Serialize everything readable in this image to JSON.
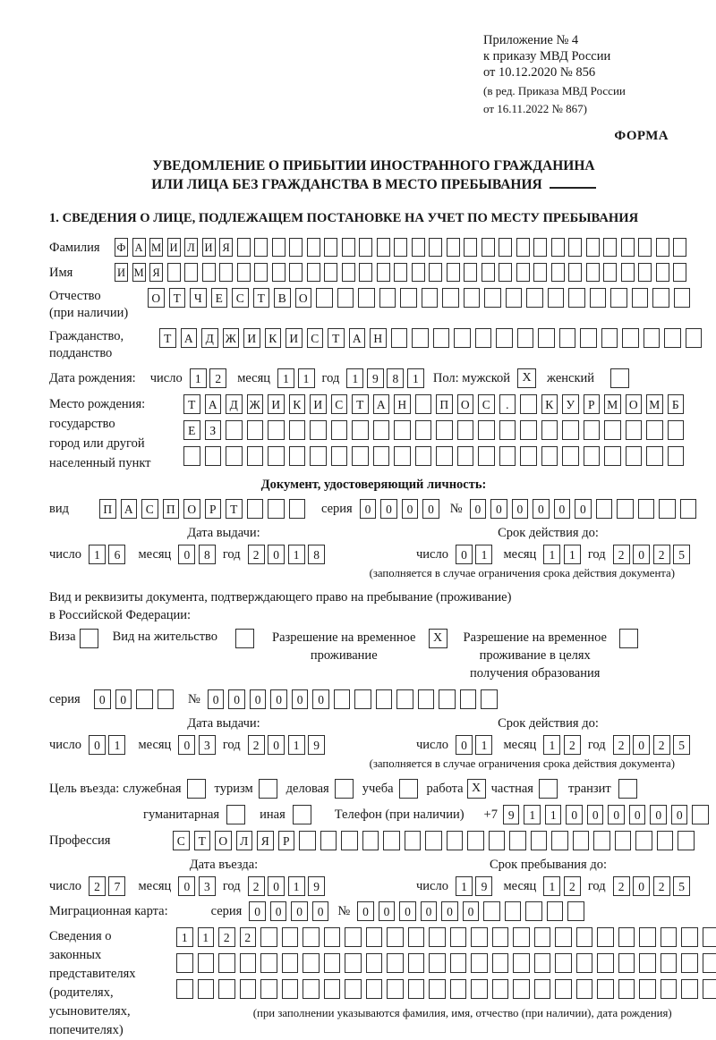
{
  "header": {
    "appendix_line1": "Приложение № 4",
    "appendix_line2": "к приказу МВД России",
    "appendix_line3": "от 10.12.2020 № 856",
    "revision_line1": "(в ред. Приказа МВД России",
    "revision_line2": "от 16.11.2022 № 867)",
    "form_label": "ФОРМА"
  },
  "title": {
    "line1": "УВЕДОМЛЕНИЕ О ПРИБЫТИИ ИНОСТРАННОГО ГРАЖДАНИНА",
    "line2": "ИЛИ ЛИЦА БЕЗ ГРАЖДАНСТВА В МЕСТО ПРЕБЫВАНИЯ"
  },
  "section1_heading": "1. СВЕДЕНИЯ О ЛИЦЕ, ПОДЛЕЖАЩЕМ ПОСТАНОВКЕ НА УЧЕТ ПО МЕСТУ ПРЕБЫВАНИЯ",
  "surname": {
    "label": "Фамилия",
    "grid": {
      "chars": "ФАМИЛИЯ",
      "cells": 33
    }
  },
  "firstname": {
    "label": "Имя",
    "grid": {
      "chars": "ИМЯ",
      "cells": 33
    }
  },
  "patronymic": {
    "label_line1": "Отчество",
    "label_line2": "(при наличии)",
    "grid": {
      "chars": "ОТЧЕСТВО",
      "cells": 26
    }
  },
  "citizenship": {
    "label_line1": "Гражданство,",
    "label_line2": "подданство",
    "grid": {
      "chars": "ТАДЖИКИСТАН",
      "cells": 26
    }
  },
  "birth_date": {
    "label": "Дата рождения:",
    "day_label": "число",
    "day": {
      "chars": "12",
      "cells": 2
    },
    "month_label": "месяц",
    "month": {
      "chars": "11",
      "cells": 2
    },
    "year_label": "год",
    "year": {
      "chars": "1981",
      "cells": 4
    },
    "sex_label": "Пол: мужской",
    "male_box": {
      "chars": "X",
      "cells": 1
    },
    "female_label": "женский",
    "female_box": {
      "chars": "",
      "cells": 1
    }
  },
  "birth_place": {
    "label_line1": "Место рождения:",
    "label_line2": "государство",
    "label_line3": "город или другой",
    "label_line4": "населенный пункт",
    "row1": {
      "chars": "ТАДЖИКИСТАН ПОС. КУРМОМБ",
      "cells": 24
    },
    "row2": {
      "chars": "ЕЗ",
      "cells": 24
    },
    "row3": {
      "chars": "",
      "cells": 24
    }
  },
  "identity_doc": {
    "heading": "Документ, удостоверяющий личность:",
    "type_label": "вид",
    "type": {
      "chars": "ПАСПОРТ",
      "cells": 10
    },
    "series_label": "серия",
    "series": {
      "chars": "0000",
      "cells": 4
    },
    "number_label": "№",
    "number": {
      "chars": "000000",
      "cells": 11
    },
    "issue_heading": "Дата выдачи:",
    "issue_day_label": "число",
    "issue_day": {
      "chars": "16",
      "cells": 2
    },
    "issue_month_label": "месяц",
    "issue_month": {
      "chars": "08",
      "cells": 2
    },
    "issue_year_label": "год",
    "issue_year": {
      "chars": "2018",
      "cells": 4
    },
    "expiry_heading": "Срок действия до:",
    "expiry_day_label": "число",
    "expiry_day": {
      "chars": "01",
      "cells": 2
    },
    "expiry_month_label": "месяц",
    "expiry_month": {
      "chars": "11",
      "cells": 2
    },
    "expiry_year_label": "год",
    "expiry_year": {
      "chars": "2025",
      "cells": 4
    },
    "note": "(заполняется в случае ограничения срока действия документа)"
  },
  "stay_doc": {
    "intro_line1": "Вид и реквизиты документа, подтверждающего право на пребывание (проживание)",
    "intro_line2": "в Российской Федерации:",
    "visa_label": "Виза",
    "visa_box": {
      "chars": "",
      "cells": 1
    },
    "residence_label": "Вид на жительство",
    "residence_box": {
      "chars": "",
      "cells": 1
    },
    "temp_label_line1": "Разрешение на временное",
    "temp_label_line2": "проживание",
    "temp_box": {
      "chars": "X",
      "cells": 1
    },
    "edu_label_line1": "Разрешение на временное",
    "edu_label_line2": "проживание в целях",
    "edu_label_line3": "получения образования",
    "edu_box": {
      "chars": "",
      "cells": 1
    },
    "series_label": "серия",
    "series": {
      "chars": "00",
      "cells": 4
    },
    "number_label": "№",
    "number": {
      "chars": "000000",
      "cells": 14
    },
    "issue_heading": "Дата выдачи:",
    "issue_day_label": "число",
    "issue_day": {
      "chars": "01",
      "cells": 2
    },
    "issue_month_label": "месяц",
    "issue_month": {
      "chars": "03",
      "cells": 2
    },
    "issue_year_label": "год",
    "issue_year": {
      "chars": "2019",
      "cells": 4
    },
    "expiry_heading": "Срок действия до:",
    "expiry_day_label": "число",
    "expiry_day": {
      "chars": "01",
      "cells": 2
    },
    "expiry_month_label": "месяц",
    "expiry_month": {
      "chars": "12",
      "cells": 2
    },
    "expiry_year_label": "год",
    "expiry_year": {
      "chars": "2025",
      "cells": 4
    },
    "note": "(заполняется в случае ограничения срока действия документа)"
  },
  "purpose": {
    "label": "Цель въезда:",
    "opt1_label": "служебная",
    "opt1_box": {
      "chars": "",
      "cells": 1
    },
    "opt2_label": "туризм",
    "opt2_box": {
      "chars": "",
      "cells": 1
    },
    "opt3_label": "деловая",
    "opt3_box": {
      "chars": "",
      "cells": 1
    },
    "opt4_label": "учеба",
    "opt4_box": {
      "chars": "",
      "cells": 1
    },
    "opt5_label": "работа",
    "opt5_box": {
      "chars": "X",
      "cells": 1
    },
    "opt6_label": "частная",
    "opt6_box": {
      "chars": "",
      "cells": 1
    },
    "opt7_label": "транзит",
    "opt7_box": {
      "chars": "",
      "cells": 1
    },
    "opt8_label": "гуманитарная",
    "opt8_box": {
      "chars": "",
      "cells": 1
    },
    "opt9_label": "иная",
    "opt9_box": {
      "chars": "",
      "cells": 1
    }
  },
  "phone": {
    "label": "Телефон (при наличии)",
    "prefix": "+7",
    "grid": {
      "chars": "911000000",
      "cells": 10
    }
  },
  "profession": {
    "label": "Профессия",
    "grid": {
      "chars": "СТОЛЯР",
      "cells": 25
    }
  },
  "entry": {
    "entry_heading": "Дата въезда:",
    "entry_day_label": "число",
    "entry_day": {
      "chars": "27",
      "cells": 2
    },
    "entry_month_label": "месяц",
    "entry_month": {
      "chars": "03",
      "cells": 2
    },
    "entry_year_label": "год",
    "entry_year": {
      "chars": "2019",
      "cells": 4
    },
    "stay_heading": "Срок пребывания до:",
    "stay_day_label": "число",
    "stay_day": {
      "chars": "19",
      "cells": 2
    },
    "stay_month_label": "месяц",
    "stay_month": {
      "chars": "12",
      "cells": 2
    },
    "stay_year_label": "год",
    "stay_year": {
      "chars": "2025",
      "cells": 4
    }
  },
  "migration_card": {
    "label": "Миграционная карта:",
    "series_label": "серия",
    "series": {
      "chars": "0000",
      "cells": 4
    },
    "number_label": "№",
    "number": {
      "chars": "000000",
      "cells": 11
    }
  },
  "representatives": {
    "label_line1": "Сведения о",
    "label_line2": "законных",
    "label_line3": "представителях",
    "label_line4": "(родителях,",
    "label_line5": "усыновителях,",
    "label_line6": "попечителях)",
    "row1": {
      "chars": "1122",
      "cells": 27
    },
    "row2": {
      "chars": "",
      "cells": 27
    },
    "row3": {
      "chars": "",
      "cells": 27
    },
    "note": "(при заполнении указываются фамилия, имя, отчество (при наличии), дата рождения)"
  }
}
